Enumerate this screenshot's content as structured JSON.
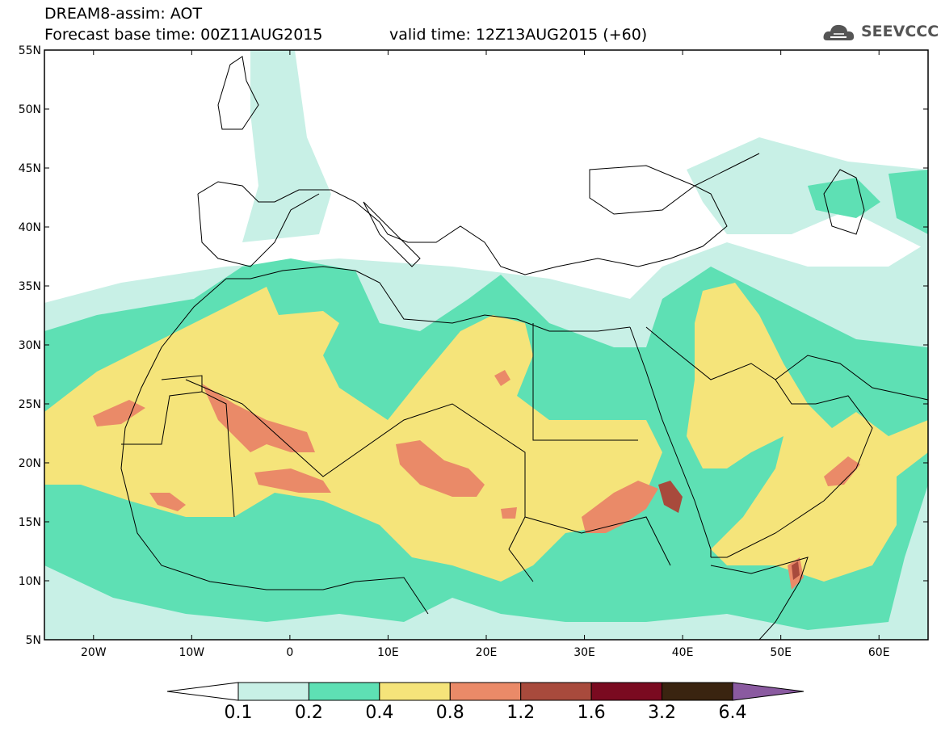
{
  "header": {
    "line1": "DREAM8-assim: AOT",
    "line2": "Forecast base time: 00Z11AUG2015",
    "valid": "valid time: 12Z13AUG2015 (+60)"
  },
  "logo": {
    "text": "SEEVCCC",
    "icon": "cloud-icon"
  },
  "map": {
    "lon_range": [
      -25,
      65
    ],
    "lat_range": [
      5,
      55
    ],
    "lat_ticks": [
      {
        "value": 55,
        "label": "55N"
      },
      {
        "value": 50,
        "label": "50N"
      },
      {
        "value": 45,
        "label": "45N"
      },
      {
        "value": 40,
        "label": "40N"
      },
      {
        "value": 35,
        "label": "35N"
      },
      {
        "value": 30,
        "label": "30N"
      },
      {
        "value": 25,
        "label": "25N"
      },
      {
        "value": 20,
        "label": "20N"
      },
      {
        "value": 15,
        "label": "15N"
      },
      {
        "value": 10,
        "label": "10N"
      },
      {
        "value": 5,
        "label": "5N"
      }
    ],
    "lon_ticks": [
      {
        "value": -20,
        "label": "20W"
      },
      {
        "value": -10,
        "label": "10W"
      },
      {
        "value": 0,
        "label": "0"
      },
      {
        "value": 10,
        "label": "10E"
      },
      {
        "value": 20,
        "label": "20E"
      },
      {
        "value": 30,
        "label": "30E"
      },
      {
        "value": 40,
        "label": "40E"
      },
      {
        "value": 50,
        "label": "50E"
      },
      {
        "value": 60,
        "label": "60E"
      }
    ]
  },
  "colorbar": {
    "levels": [
      "0.1",
      "0.2",
      "0.4",
      "0.8",
      "1.2",
      "1.6",
      "3.2",
      "6.4"
    ],
    "colors": [
      "#ffffff",
      "#c8f0e6",
      "#5ee0b4",
      "#f5e47a",
      "#ea8a68",
      "#a84a3c",
      "#7a0a20",
      "#3a2410",
      "#8a5aa0"
    ]
  }
}
